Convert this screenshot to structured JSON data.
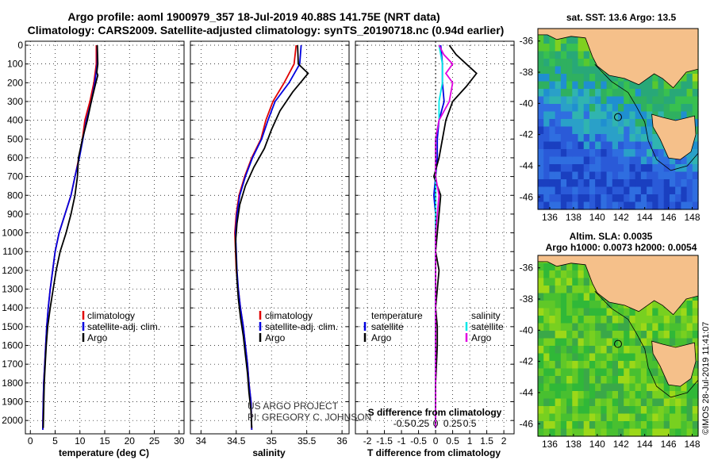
{
  "title": {
    "line1": "Argo profile: aoml 1900979_357 18-Jul-2019 40.88S 141.75E (NRT data)",
    "line2": "Climatology: CARS2009. Satellite-adjusted climatology: synTS_20190718.nc (0.94d earlier)"
  },
  "credit": {
    "line1": "US ARGO PROJECT",
    "line2": "PI: GREGORY C. JOHNSON"
  },
  "imos_stamp": "©IMOS 28-Jul-2019 11:41:07",
  "colors": {
    "climatology": "#e00000",
    "satellite": "#0000e0",
    "argo": "#000000",
    "sat_salinity": "#00e8e8",
    "argo_salinity": "#e000e0",
    "land": "#f5c08a"
  },
  "depth_ticks": [
    "0",
    "100",
    "200",
    "300",
    "400",
    "500",
    "600",
    "700",
    "800",
    "900",
    "1000",
    "1100",
    "1200",
    "1300",
    "1400",
    "1500",
    "1600",
    "1700",
    "1800",
    "1900",
    "2000"
  ],
  "panels": {
    "temperature": {
      "xlabel": "temperature (deg C)",
      "xticks": [
        "0",
        "5",
        "10",
        "15",
        "20",
        "25",
        "30"
      ],
      "legend": [
        "climatology",
        "satellite-adj. clim.",
        "Argo"
      ]
    },
    "salinity": {
      "xlabel": "salinity",
      "xticks": [
        "34",
        "34.5",
        "35",
        "35.5",
        "36"
      ],
      "legend": [
        "climatology",
        "satellite-adj. clim.",
        "Argo"
      ]
    },
    "difference": {
      "xlabel": "T difference from climatology",
      "toplabel": "S difference from climatology",
      "xticks": [
        "-2",
        "-1.5",
        "-1",
        "-0.5",
        "0",
        "0.5",
        "1",
        "1.5",
        "2"
      ],
      "top_xticks": [
        "-0.5",
        "-0.25",
        "0",
        "0.25",
        "0.5"
      ],
      "legend_left_title": "temperature",
      "legend_left": [
        "satellite",
        "Argo"
      ],
      "legend_right_title": "salinity",
      "legend_right": [
        "satellite",
        "Argo"
      ]
    }
  },
  "maps": {
    "sst": {
      "title": "sat. SST: 13.6 Argo: 13.5",
      "yticks": [
        "-36",
        "-38",
        "-40",
        "-42",
        "-44",
        "-46"
      ],
      "xticks": [
        "136",
        "138",
        "140",
        "142",
        "144",
        "146",
        "148"
      ]
    },
    "sla": {
      "title1": "Altim. SLA: 0.0035",
      "title2": "Argo h1000: 0.0073 h2000: 0.0054",
      "yticks": [
        "-36",
        "-38",
        "-40",
        "-42",
        "-44",
        "-46"
      ],
      "xticks": [
        "136",
        "138",
        "140",
        "142",
        "144",
        "146",
        "148"
      ]
    }
  },
  "chart_data": [
    {
      "type": "line",
      "panel": "temperature",
      "xlabel": "temperature (deg C)",
      "ylabel": "",
      "xlim": [
        -1,
        31
      ],
      "ylim": [
        2050,
        0
      ],
      "series": [
        {
          "name": "climatology",
          "x": [
            13.3,
            13.3,
            12.8,
            12.0,
            11.0,
            10.5,
            9.8,
            9.0,
            8.2,
            7.0,
            5.8,
            5.0,
            4.5,
            4.0,
            3.6,
            3.3,
            3.1,
            2.9,
            2.7,
            2.6,
            2.5
          ],
          "y": [
            0,
            100,
            200,
            300,
            400,
            500,
            600,
            700,
            800,
            900,
            1000,
            1100,
            1200,
            1300,
            1400,
            1500,
            1600,
            1700,
            1800,
            1900,
            2050
          ]
        },
        {
          "name": "satellite-adj. clim.",
          "x": [
            13.5,
            13.5,
            13.0,
            12.3,
            11.3,
            10.6,
            9.9,
            9.0,
            8.2,
            7.0,
            5.8,
            5.0,
            4.5,
            4.0,
            3.6,
            3.3,
            3.1,
            2.9,
            2.7,
            2.6,
            2.5
          ],
          "y": [
            0,
            100,
            200,
            300,
            400,
            500,
            600,
            700,
            800,
            900,
            1000,
            1100,
            1200,
            1300,
            1400,
            1500,
            1600,
            1700,
            1800,
            1900,
            2050
          ]
        },
        {
          "name": "Argo",
          "x": [
            13.5,
            13.6,
            13.4,
            13.6,
            13.2,
            12.3,
            11.5,
            10.5,
            9.7,
            9.5,
            9.0,
            8.2,
            7.2,
            6.0,
            5.2,
            4.6,
            4.0,
            3.5,
            3.2,
            3.0,
            2.8,
            2.6
          ],
          "y": [
            0,
            100,
            145,
            160,
            200,
            300,
            400,
            500,
            600,
            700,
            800,
            900,
            1000,
            1100,
            1200,
            1300,
            1400,
            1500,
            1600,
            1700,
            1800,
            2040
          ]
        }
      ]
    },
    {
      "type": "line",
      "panel": "salinity",
      "xlabel": "salinity",
      "ylabel": "",
      "xlim": [
        33.85,
        36.1
      ],
      "ylim": [
        2050,
        0
      ],
      "series": [
        {
          "name": "climatology",
          "x": [
            35.35,
            35.32,
            35.18,
            35.02,
            34.92,
            34.85,
            34.72,
            34.62,
            34.54,
            34.5,
            34.48,
            34.49,
            34.5,
            34.53,
            34.56,
            34.6,
            34.63,
            34.66,
            34.68,
            34.71,
            34.72
          ],
          "y": [
            0,
            100,
            200,
            300,
            400,
            500,
            600,
            700,
            800,
            900,
            1000,
            1100,
            1200,
            1300,
            1400,
            1500,
            1600,
            1700,
            1800,
            1900,
            2050
          ]
        },
        {
          "name": "satellite-adj. clim.",
          "x": [
            35.42,
            35.4,
            35.25,
            35.05,
            34.95,
            34.86,
            34.73,
            34.63,
            34.55,
            34.51,
            34.49,
            34.5,
            34.51,
            34.53,
            34.56,
            34.6,
            34.63,
            34.66,
            34.68,
            34.71,
            34.72
          ],
          "y": [
            0,
            100,
            200,
            300,
            400,
            500,
            600,
            700,
            800,
            900,
            1000,
            1100,
            1200,
            1300,
            1400,
            1500,
            1600,
            1700,
            1800,
            1900,
            2050
          ]
        },
        {
          "name": "Argo",
          "x": [
            35.37,
            35.38,
            35.52,
            35.3,
            35.12,
            35.0,
            34.9,
            34.75,
            34.63,
            34.55,
            34.51,
            34.49,
            34.5,
            34.51,
            34.53,
            34.56,
            34.6,
            34.63,
            34.66,
            34.68,
            34.71,
            34.72
          ],
          "y": [
            0,
            100,
            150,
            250,
            350,
            450,
            550,
            650,
            750,
            850,
            950,
            1050,
            1150,
            1250,
            1350,
            1450,
            1550,
            1650,
            1750,
            1850,
            1950,
            2040
          ]
        }
      ]
    },
    {
      "type": "line",
      "panel": "difference",
      "xlabel": "T difference from climatology",
      "ylabel": "",
      "xlim": [
        -2.35,
        2.3
      ],
      "ylim": [
        2050,
        0
      ],
      "series": [
        {
          "name": "temperature satellite",
          "x": [
            0.15,
            0.2,
            0.2,
            0.25,
            0.1,
            0.05,
            0.05,
            0.0,
            -0.05,
            0.0,
            0.0,
            0.0,
            0.0,
            0.0,
            0.0,
            0.0,
            0.0,
            0.0,
            0.0,
            0.0
          ],
          "y": [
            0,
            100,
            200,
            300,
            400,
            500,
            600,
            700,
            800,
            900,
            1000,
            1100,
            1200,
            1300,
            1400,
            1500,
            1600,
            1700,
            1800,
            2040
          ]
        },
        {
          "name": "temperature Argo",
          "x": [
            0.4,
            0.6,
            0.9,
            1.2,
            0.9,
            0.5,
            0.3,
            0.2,
            0.1,
            -0.05,
            0.05,
            0.15,
            0.1,
            0.05,
            0.0,
            0.1,
            0.05,
            0.0,
            0.05,
            0.05,
            0.0,
            0.0
          ],
          "y": [
            0,
            50,
            100,
            150,
            220,
            300,
            400,
            500,
            600,
            700,
            750,
            800,
            900,
            1000,
            1100,
            1200,
            1300,
            1400,
            1500,
            1600,
            1800,
            2040
          ]
        },
        {
          "name": "salinity satellite",
          "x": [
            0.05,
            0.1,
            0.1,
            0.05,
            0.05,
            0.0,
            0.0,
            0.0,
            0.0,
            0.0,
            0.0,
            0.0,
            0.0,
            0.0,
            0.0,
            0.0,
            0.0
          ],
          "y": [
            0,
            100,
            200,
            300,
            400,
            500,
            700,
            800,
            900,
            1000,
            1100,
            1200,
            1400,
            1600,
            1800,
            1900,
            2040
          ]
        },
        {
          "name": "salinity Argo",
          "x": [
            0.05,
            0.12,
            0.25,
            0.15,
            0.25,
            0.2,
            0.05,
            0.0,
            0.0,
            0.05,
            0.0,
            0.0,
            0.0,
            0.0
          ],
          "y": [
            0,
            50,
            100,
            150,
            200,
            300,
            400,
            500,
            700,
            800,
            1000,
            1300,
            1700,
            2040
          ]
        }
      ]
    }
  ]
}
